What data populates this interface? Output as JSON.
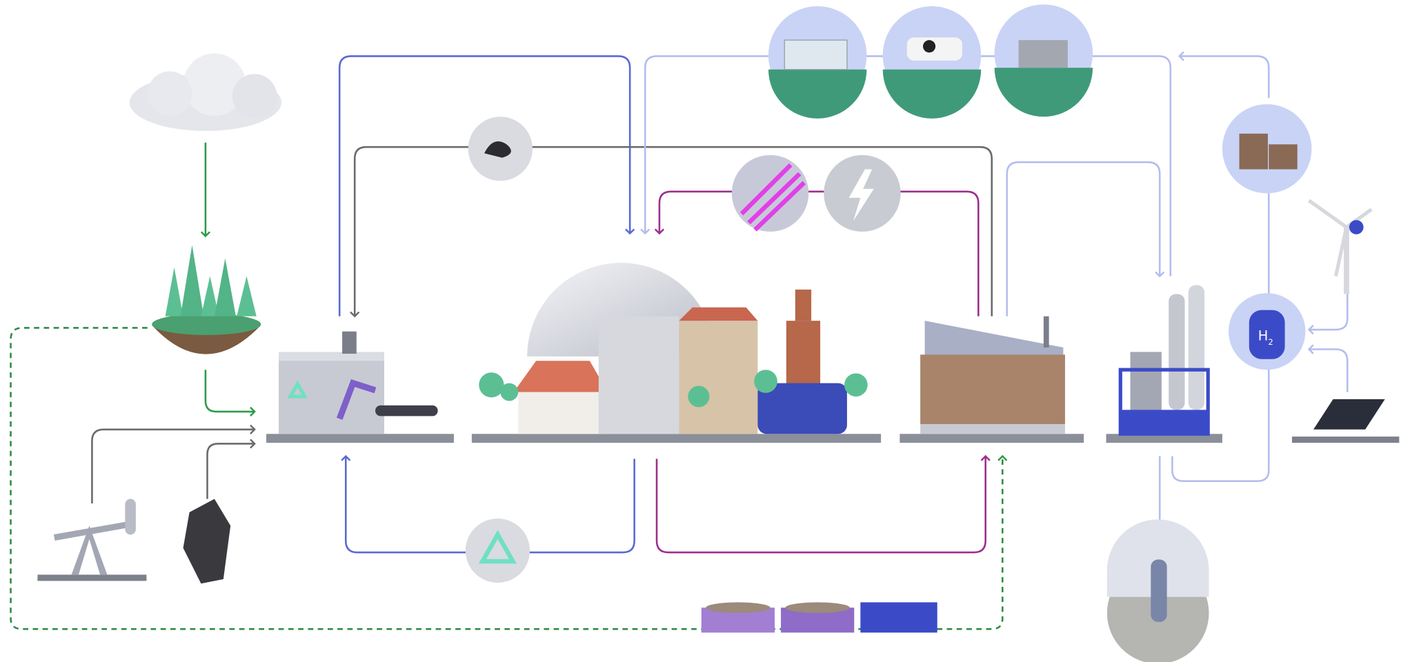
{
  "hydrogen_tank": {
    "symbol": "H",
    "subscript": "2"
  }
}
